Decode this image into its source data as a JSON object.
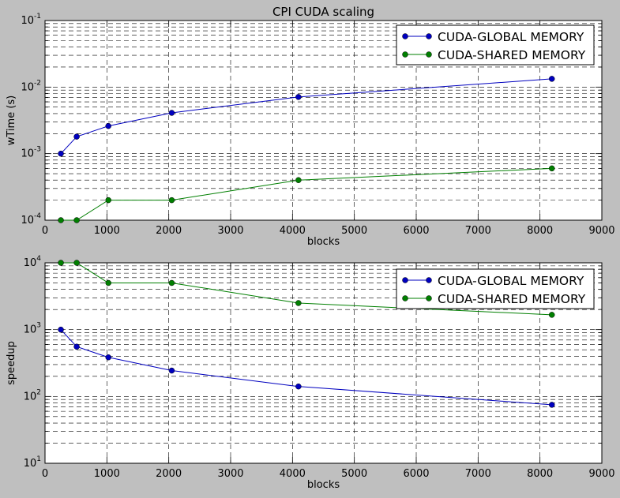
{
  "colors": {
    "figure_bg": "#bfbfbf",
    "axes_bg": "#ffffff",
    "series": [
      "#0000bf",
      "#007f00"
    ]
  },
  "chart_data": [
    {
      "type": "line",
      "title": "CPI CUDA scaling",
      "xlabel": "blocks",
      "ylabel": "wTime (s)",
      "yscale": "log",
      "xlim": [
        0,
        9000
      ],
      "ylim": [
        0.0001,
        0.1
      ],
      "xticks": [
        "0",
        "1000",
        "2000",
        "3000",
        "4000",
        "5000",
        "6000",
        "7000",
        "8000",
        "9000"
      ],
      "ytick_labels": [
        {
          "base": "10",
          "exp": "-4"
        },
        {
          "base": "10",
          "exp": "-3"
        },
        {
          "base": "10",
          "exp": "-2"
        },
        {
          "base": "10",
          "exp": "-1"
        }
      ],
      "grid": true,
      "legend": "top-right",
      "x": [
        256,
        512,
        1024,
        2048,
        4096,
        8192
      ],
      "series": [
        {
          "name": "CUDA-GLOBAL MEMORY",
          "values": [
            0.001,
            0.0018,
            0.0026,
            0.0041,
            0.0071,
            0.0133
          ]
        },
        {
          "name": "CUDA-SHARED MEMORY",
          "values": [
            0.0001,
            0.0001,
            0.0002,
            0.0002,
            0.0004,
            0.0006
          ]
        }
      ]
    },
    {
      "type": "line",
      "title": "",
      "xlabel": "blocks",
      "ylabel": "speedup",
      "yscale": "log",
      "xlim": [
        0,
        9000
      ],
      "ylim": [
        10,
        10000
      ],
      "xticks": [
        "0",
        "1000",
        "2000",
        "3000",
        "4000",
        "5000",
        "6000",
        "7000",
        "8000",
        "9000"
      ],
      "ytick_labels": [
        {
          "base": "10",
          "exp": "1"
        },
        {
          "base": "10",
          "exp": "2"
        },
        {
          "base": "10",
          "exp": "3"
        },
        {
          "base": "10",
          "exp": "4"
        }
      ],
      "grid": true,
      "legend": "top-right",
      "x": [
        256,
        512,
        1024,
        2048,
        4096,
        8192
      ],
      "series": [
        {
          "name": "CUDA-GLOBAL MEMORY",
          "values": [
            1000,
            556,
            385,
            244,
            141,
            75
          ]
        },
        {
          "name": "CUDA-SHARED MEMORY",
          "values": [
            10000,
            10000,
            5000,
            5000,
            2500,
            1667
          ]
        }
      ]
    }
  ]
}
